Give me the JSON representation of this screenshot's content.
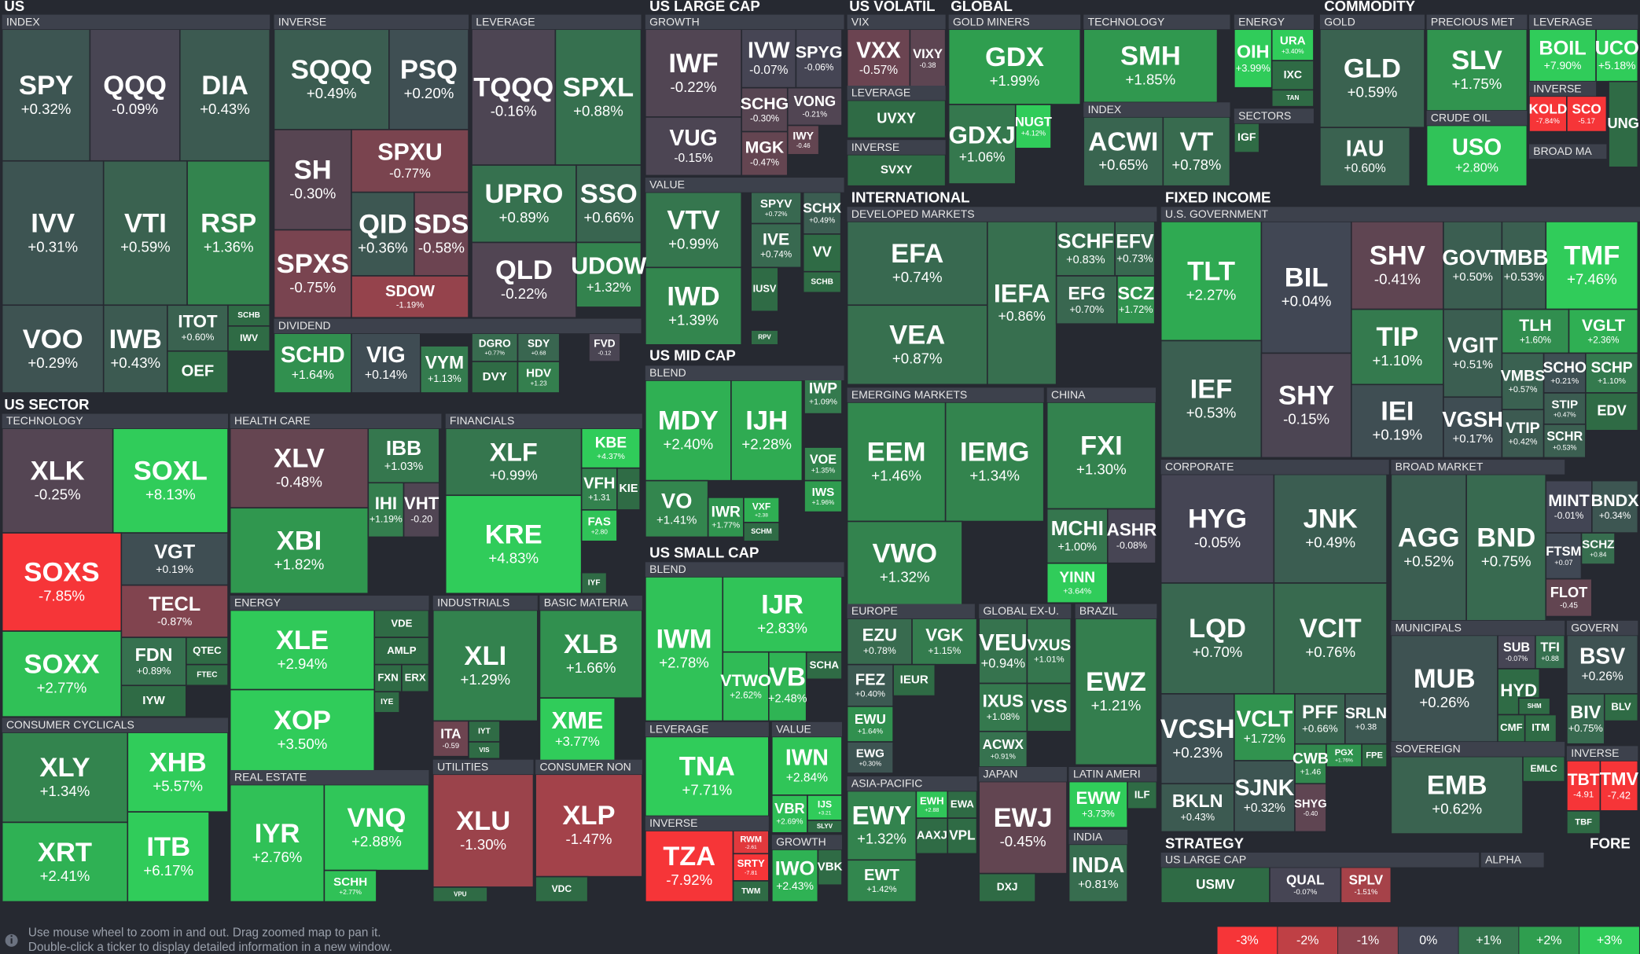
{
  "sections": [
    "US",
    "US LARGE CAP",
    "US VOLATIL",
    "GLOBAL",
    "COMMODITY",
    "INTERNATIONAL",
    "FIXED INCOME",
    "US SECTOR",
    "US MID CAP",
    "US SMALL CAP",
    "STRATEGY",
    "FORE"
  ],
  "groups": [
    "INDEX",
    "INVERSE",
    "LEVERAGE",
    "DIVIDEND",
    "GROWTH",
    "VALUE",
    "VIX",
    "LEVERAGE",
    "INVERSE",
    "GOLD MINERS",
    "TECHNOLOGY",
    "ENERGY",
    "INDEX",
    "SECTORS",
    "GOLD",
    "PRECIOUS MET",
    "CRUDE OIL",
    "LEVERAGE",
    "INVERSE",
    "BROAD MA",
    "DEVELOPED MARKETS",
    "EMERGING MARKETS",
    "CHINA",
    "EUROPE",
    "GLOBAL EX-U.",
    "BRAZIL",
    "ASIA-PACIFIC",
    "JAPAN",
    "LATIN AMERI",
    "INDIA",
    "U.S. GOVERNMENT",
    "CORPORATE",
    "BROAD MARKET",
    "MUNICIPALS",
    "GOVERN",
    "SOVEREIGN",
    "INVERSE",
    "US LARGE CAP",
    "ALPHA",
    "TECHNOLOGY",
    "CONSUMER CYCLICALS",
    "HEALTH CARE",
    "FINANCIALS",
    "ENERGY",
    "INDUSTRIALS",
    "BASIC MATERIA",
    "REAL ESTATE",
    "UTILITIES",
    "CONSUMER NON",
    "BLEND",
    "BLEND",
    "LEVERAGE",
    "INVERSE",
    "VALUE",
    "GROWTH"
  ],
  "tiles": [
    {
      "ticker": "SPY",
      "change": "+0.32%"
    },
    {
      "ticker": "QQQ",
      "change": "-0.09%"
    },
    {
      "ticker": "DIA",
      "change": "+0.43%"
    },
    {
      "ticker": "IVV",
      "change": "+0.31%"
    },
    {
      "ticker": "VTI",
      "change": "+0.59%"
    },
    {
      "ticker": "RSP",
      "change": "+1.36%"
    },
    {
      "ticker": "VOO",
      "change": "+0.29%"
    },
    {
      "ticker": "IWB",
      "change": "+0.43%"
    },
    {
      "ticker": "ITOT",
      "change": "+0.60%"
    },
    {
      "ticker": "SCHB"
    },
    {
      "ticker": "IWV"
    },
    {
      "ticker": "OEF"
    },
    {
      "ticker": "SQQQ",
      "change": "+0.49%"
    },
    {
      "ticker": "PSQ",
      "change": "+0.20%"
    },
    {
      "ticker": "SH",
      "change": "-0.30%"
    },
    {
      "ticker": "SPXU",
      "change": "-0.77%"
    },
    {
      "ticker": "QID",
      "change": "+0.36%"
    },
    {
      "ticker": "SDS",
      "change": "-0.58%"
    },
    {
      "ticker": "SPXS",
      "change": "-0.75%"
    },
    {
      "ticker": "SDOW",
      "change": "-1.19%"
    },
    {
      "ticker": "TQQQ",
      "change": "-0.16%"
    },
    {
      "ticker": "SPXL",
      "change": "+0.88%"
    },
    {
      "ticker": "UPRO",
      "change": "+0.89%"
    },
    {
      "ticker": "SSO",
      "change": "+0.66%"
    },
    {
      "ticker": "QLD",
      "change": "-0.22%"
    },
    {
      "ticker": "UDOW",
      "change": "+1.32%"
    },
    {
      "ticker": "SCHD",
      "change": "+1.64%"
    },
    {
      "ticker": "VIG",
      "change": "+0.14%"
    },
    {
      "ticker": "VYM",
      "change": "+1.13%"
    },
    {
      "ticker": "DGRO",
      "change": "+0.77%"
    },
    {
      "ticker": "SDY",
      "change": "+0.68"
    },
    {
      "ticker": "FVD",
      "change": "-0.12"
    },
    {
      "ticker": "DVY"
    },
    {
      "ticker": "HDV",
      "change": "+1.23"
    },
    {
      "ticker": "IWF",
      "change": "-0.22%"
    },
    {
      "ticker": "IVW",
      "change": "-0.07%"
    },
    {
      "ticker": "SPYG",
      "change": "-0.06%"
    },
    {
      "ticker": "VUG",
      "change": "-0.15%"
    },
    {
      "ticker": "SCHG",
      "change": "-0.30%"
    },
    {
      "ticker": "VONG",
      "change": "-0.21%"
    },
    {
      "ticker": "MGK",
      "change": "-0.47%"
    },
    {
      "ticker": "IWY",
      "change": "-0.46"
    },
    {
      "ticker": "VTV",
      "change": "+0.99%"
    },
    {
      "ticker": "SPYV",
      "change": "+0.72%"
    },
    {
      "ticker": "SCHX",
      "change": "+0.49%"
    },
    {
      "ticker": "IVE",
      "change": "+0.74%"
    },
    {
      "ticker": "VV"
    },
    {
      "ticker": "IWD",
      "change": "+1.39%"
    },
    {
      "ticker": "IUSV"
    },
    {
      "ticker": "SCHB"
    },
    {
      "ticker": "RPV"
    },
    {
      "ticker": "MDY",
      "change": "+2.40%"
    },
    {
      "ticker": "IJH",
      "change": "+2.28%"
    },
    {
      "ticker": "IWP",
      "change": "+1.09%"
    },
    {
      "ticker": "VOE",
      "change": "+1.35%"
    },
    {
      "ticker": "IWS",
      "change": "+1.96%"
    },
    {
      "ticker": "VO",
      "change": "+1.41%"
    },
    {
      "ticker": "IWR",
      "change": "+1.77%"
    },
    {
      "ticker": "VXF",
      "change": "+2.38"
    },
    {
      "ticker": "SCHM"
    },
    {
      "ticker": "IWM",
      "change": "+2.78%"
    },
    {
      "ticker": "IJR",
      "change": "+2.83%"
    },
    {
      "ticker": "VTWO",
      "change": "+2.62%"
    },
    {
      "ticker": "VB",
      "change": "+2.48%"
    },
    {
      "ticker": "SCHA"
    },
    {
      "ticker": "TNA",
      "change": "+7.71%"
    },
    {
      "ticker": "TZA",
      "change": "-7.92%"
    },
    {
      "ticker": "RWM",
      "change": "-2.61"
    },
    {
      "ticker": "SRTY",
      "change": "-7.81"
    },
    {
      "ticker": "TWM"
    },
    {
      "ticker": "IWN",
      "change": "+2.84%"
    },
    {
      "ticker": "VBR",
      "change": "+2.69%"
    },
    {
      "ticker": "IJS",
      "change": "+3.21"
    },
    {
      "ticker": "SLYV"
    },
    {
      "ticker": "IWO",
      "change": "+2.43%"
    },
    {
      "ticker": "VBK"
    },
    {
      "ticker": "VXX",
      "change": "-0.57%"
    },
    {
      "ticker": "VIXY",
      "change": "-0.38"
    },
    {
      "ticker": "UVXY"
    },
    {
      "ticker": "SVXY"
    },
    {
      "ticker": "GDX",
      "change": "+1.99%"
    },
    {
      "ticker": "GDXJ",
      "change": "+1.06%"
    },
    {
      "ticker": "NUGT",
      "change": "+4.12%"
    },
    {
      "ticker": "SMH",
      "change": "+1.85%"
    },
    {
      "ticker": "OIH",
      "change": "+3.99%"
    },
    {
      "ticker": "URA",
      "change": "+3.40%"
    },
    {
      "ticker": "IXC"
    },
    {
      "ticker": "TAN"
    },
    {
      "ticker": "ACWI",
      "change": "+0.65%"
    },
    {
      "ticker": "VT",
      "change": "+0.78%"
    },
    {
      "ticker": "IGF"
    },
    {
      "ticker": "GLD",
      "change": "+0.59%"
    },
    {
      "ticker": "IAU",
      "change": "+0.60%"
    },
    {
      "ticker": "SLV",
      "change": "+1.75%"
    },
    {
      "ticker": "USO",
      "change": "+2.80%"
    },
    {
      "ticker": "BOIL",
      "change": "+7.90%"
    },
    {
      "ticker": "UCO",
      "change": "+5.18%"
    },
    {
      "ticker": "KOLD",
      "change": "-7.84%"
    },
    {
      "ticker": "SCO",
      "change": "-5.17"
    },
    {
      "ticker": "UNG"
    },
    {
      "ticker": "EFA",
      "change": "+0.74%"
    },
    {
      "ticker": "VEA",
      "change": "+0.87%"
    },
    {
      "ticker": "IEFA",
      "change": "+0.86%"
    },
    {
      "ticker": "SCHF",
      "change": "+0.83%"
    },
    {
      "ticker": "EFV",
      "change": "+0.73%"
    },
    {
      "ticker": "EFG",
      "change": "+0.70%"
    },
    {
      "ticker": "SCZ",
      "change": "+1.72%"
    },
    {
      "ticker": "EEM",
      "change": "+1.46%"
    },
    {
      "ticker": "IEMG",
      "change": "+1.34%"
    },
    {
      "ticker": "VWO",
      "change": "+1.32%"
    },
    {
      "ticker": "FXI",
      "change": "+1.30%"
    },
    {
      "ticker": "MCHI",
      "change": "+1.00%"
    },
    {
      "ticker": "ASHR",
      "change": "-0.08%"
    },
    {
      "ticker": "YINN",
      "change": "+3.64%"
    },
    {
      "ticker": "EZU",
      "change": "+0.78%"
    },
    {
      "ticker": "VGK",
      "change": "+1.15%"
    },
    {
      "ticker": "FEZ",
      "change": "+0.40%"
    },
    {
      "ticker": "IEUR"
    },
    {
      "ticker": "EWU",
      "change": "+1.64%"
    },
    {
      "ticker": "EWG",
      "change": "+0.30%"
    },
    {
      "ticker": "VEU",
      "change": "+0.94%"
    },
    {
      "ticker": "VXUS",
      "change": "+1.01%"
    },
    {
      "ticker": "IXUS",
      "change": "+1.08%"
    },
    {
      "ticker": "VSS"
    },
    {
      "ticker": "ACWX",
      "change": "+0.91%"
    },
    {
      "ticker": "EWZ",
      "change": "+1.21%"
    },
    {
      "ticker": "EWY",
      "change": "+1.32%"
    },
    {
      "ticker": "EWH",
      "change": "+2.88"
    },
    {
      "ticker": "EWA"
    },
    {
      "ticker": "AAXJ"
    },
    {
      "ticker": "VPL"
    },
    {
      "ticker": "EWT",
      "change": "+1.42%"
    },
    {
      "ticker": "EWJ",
      "change": "-0.45%"
    },
    {
      "ticker": "DXJ"
    },
    {
      "ticker": "EWW",
      "change": "+3.73%"
    },
    {
      "ticker": "ILF"
    },
    {
      "ticker": "INDA",
      "change": "+0.81%"
    },
    {
      "ticker": "TLT",
      "change": "+2.27%"
    },
    {
      "ticker": "BIL",
      "change": "+0.04%"
    },
    {
      "ticker": "SHV",
      "change": "-0.41%"
    },
    {
      "ticker": "GOVT",
      "change": "+0.50%"
    },
    {
      "ticker": "MBB",
      "change": "+0.53%"
    },
    {
      "ticker": "TMF",
      "change": "+7.46%"
    },
    {
      "ticker": "IEF",
      "change": "+0.53%"
    },
    {
      "ticker": "SHY",
      "change": "-0.15%"
    },
    {
      "ticker": "TIP",
      "change": "+1.10%"
    },
    {
      "ticker": "VGIT",
      "change": "+0.51%"
    },
    {
      "ticker": "TLH",
      "change": "+1.60%"
    },
    {
      "ticker": "VGLT",
      "change": "+2.36%"
    },
    {
      "ticker": "IEI",
      "change": "+0.19%"
    },
    {
      "ticker": "VMBS",
      "change": "+0.57%"
    },
    {
      "ticker": "SCHO",
      "change": "+0.21%"
    },
    {
      "ticker": "SCHP",
      "change": "+1.10%"
    },
    {
      "ticker": "VGSH",
      "change": "+0.17%"
    },
    {
      "ticker": "STIP",
      "change": "+0.47%"
    },
    {
      "ticker": "EDV"
    },
    {
      "ticker": "VTIP",
      "change": "+0.42%"
    },
    {
      "ticker": "SCHR",
      "change": "+0.53%"
    },
    {
      "ticker": "HYG",
      "change": "-0.05%"
    },
    {
      "ticker": "JNK",
      "change": "+0.49%"
    },
    {
      "ticker": "LQD",
      "change": "+0.70%"
    },
    {
      "ticker": "VCIT",
      "change": "+0.76%"
    },
    {
      "ticker": "VCSH",
      "change": "+0.23%"
    },
    {
      "ticker": "VCLT",
      "change": "+1.72%"
    },
    {
      "ticker": "PFF",
      "change": "+0.66%"
    },
    {
      "ticker": "SRLN",
      "change": "+0.38"
    },
    {
      "ticker": "CWB",
      "change": "+1.46"
    },
    {
      "ticker": "PGX",
      "change": "+1.76%"
    },
    {
      "ticker": "FPE"
    },
    {
      "ticker": "BKLN",
      "change": "+0.43%"
    },
    {
      "ticker": "SJNK",
      "change": "+0.32%"
    },
    {
      "ticker": "SHYG",
      "change": "-0.40"
    },
    {
      "ticker": "AGG",
      "change": "+0.52%"
    },
    {
      "ticker": "BND",
      "change": "+0.75%"
    },
    {
      "ticker": "MINT",
      "change": "-0.01%"
    },
    {
      "ticker": "BNDX",
      "change": "+0.34%"
    },
    {
      "ticker": "FTSM",
      "change": "+0.07"
    },
    {
      "ticker": "SCHZ",
      "change": "+0.84"
    },
    {
      "ticker": "FLOT",
      "change": "-0.45"
    },
    {
      "ticker": "MUB",
      "change": "+0.26%"
    },
    {
      "ticker": "SUB",
      "change": "-0.07%"
    },
    {
      "ticker": "TFI",
      "change": "+0.88"
    },
    {
      "ticker": "HYD"
    },
    {
      "ticker": "SHM"
    },
    {
      "ticker": "CMF"
    },
    {
      "ticker": "ITM"
    },
    {
      "ticker": "BSV",
      "change": "+0.26%"
    },
    {
      "ticker": "BIV",
      "change": "+0.75%"
    },
    {
      "ticker": "BLV"
    },
    {
      "ticker": "EMB",
      "change": "+0.62%"
    },
    {
      "ticker": "EMLC"
    },
    {
      "ticker": "TBT",
      "change": "-4.91"
    },
    {
      "ticker": "TMV",
      "change": "-7.42"
    },
    {
      "ticker": "TBF"
    },
    {
      "ticker": "USMV"
    },
    {
      "ticker": "QUAL",
      "change": "-0.07%"
    },
    {
      "ticker": "SPLV",
      "change": "-1.51%"
    },
    {
      "ticker": "XLK",
      "change": "-0.25%"
    },
    {
      "ticker": "SOXL",
      "change": "+8.13%"
    },
    {
      "ticker": "SOXS",
      "change": "-7.85%"
    },
    {
      "ticker": "VGT",
      "change": "+0.19%"
    },
    {
      "ticker": "TECL",
      "change": "-0.87%"
    },
    {
      "ticker": "SOXX",
      "change": "+2.77%"
    },
    {
      "ticker": "FDN",
      "change": "+0.89%"
    },
    {
      "ticker": "QTEC"
    },
    {
      "ticker": "FTEC"
    },
    {
      "ticker": "IYW"
    },
    {
      "ticker": "XLY",
      "change": "+1.34%"
    },
    {
      "ticker": "XHB",
      "change": "+5.57%"
    },
    {
      "ticker": "XRT",
      "change": "+2.41%"
    },
    {
      "ticker": "ITB",
      "change": "+6.17%"
    },
    {
      "ticker": "XLV",
      "change": "-0.48%"
    },
    {
      "ticker": "IBB",
      "change": "+1.03%"
    },
    {
      "ticker": "IHI",
      "change": "+1.19%"
    },
    {
      "ticker": "VHT",
      "change": "-0.20"
    },
    {
      "ticker": "XBI",
      "change": "+1.82%"
    },
    {
      "ticker": "XLF",
      "change": "+0.99%"
    },
    {
      "ticker": "KBE",
      "change": "+4.37%"
    },
    {
      "ticker": "KRE",
      "change": "+4.83%"
    },
    {
      "ticker": "VFH",
      "change": "+1.31"
    },
    {
      "ticker": "KIE"
    },
    {
      "ticker": "FAS",
      "change": "+2.80"
    },
    {
      "ticker": "IYF"
    },
    {
      "ticker": "XLE",
      "change": "+2.94%"
    },
    {
      "ticker": "VDE"
    },
    {
      "ticker": "AMLP"
    },
    {
      "ticker": "FXN"
    },
    {
      "ticker": "ERX"
    },
    {
      "ticker": "IYE"
    },
    {
      "ticker": "XOP",
      "change": "+3.50%"
    },
    {
      "ticker": "XLI",
      "change": "+1.29%"
    },
    {
      "ticker": "ITA",
      "change": "-0.59"
    },
    {
      "ticker": "IYT"
    },
    {
      "ticker": "VIS"
    },
    {
      "ticker": "XLB",
      "change": "+1.66%"
    },
    {
      "ticker": "XME",
      "change": "+3.77%"
    },
    {
      "ticker": "IYR",
      "change": "+2.76%"
    },
    {
      "ticker": "VNQ",
      "change": "+2.88%"
    },
    {
      "ticker": "SCHH",
      "change": "+2.77%"
    },
    {
      "ticker": "XLU",
      "change": "-1.30%"
    },
    {
      "ticker": "VPU"
    },
    {
      "ticker": "XLP",
      "change": "-1.47%"
    },
    {
      "ticker": "VDC"
    }
  ],
  "footer": {
    "line1": "Use mouse wheel to zoom in and out. Drag zoomed map to pan it.",
    "line2": "Double-click a ticker to display detailed information in a new window."
  },
  "legend": [
    "-3%",
    "-2%",
    "-1%",
    "0%",
    "+1%",
    "+2%",
    "+3%"
  ]
}
